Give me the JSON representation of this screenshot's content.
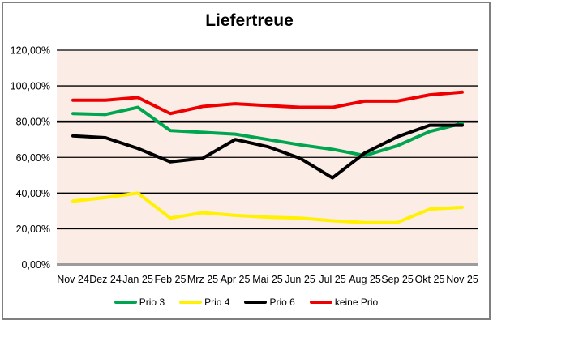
{
  "chart_data": {
    "type": "line",
    "title": "Liefertreue",
    "categories": [
      "Nov 24",
      "Dez 24",
      "Jan 25",
      "Feb 25",
      "Mrz 25",
      "Apr 25",
      "Mai 25",
      "Jun 25",
      "Jul 25",
      "Aug 25",
      "Sep 25",
      "Okt 25",
      "Nov 25"
    ],
    "series": [
      {
        "name": "Prio 3",
        "color": "#00A550",
        "values": [
          84.5,
          84,
          88,
          75,
          74,
          73,
          70,
          67,
          64.5,
          61,
          66.5,
          74.5,
          79
        ]
      },
      {
        "name": "Prio 4",
        "color": "#FFF100",
        "values": [
          35.5,
          37.5,
          40,
          26,
          29,
          27.5,
          26.5,
          26,
          24.5,
          23.5,
          23.5,
          31,
          32
        ]
      },
      {
        "name": "Prio 6",
        "color": "#000000",
        "values": [
          72,
          71,
          65,
          57.5,
          59.5,
          70,
          66,
          59.5,
          48.5,
          62.5,
          71.5,
          78,
          78
        ]
      },
      {
        "name": "keine Prio",
        "color": "#EE0000",
        "values": [
          92,
          92,
          93.5,
          84.5,
          88.5,
          90,
          89,
          88,
          88,
          91.5,
          91.5,
          95,
          96.5
        ]
      }
    ],
    "xlabel": "",
    "ylabel": "",
    "ylim": [
      0,
      120
    ],
    "y_tick_step": 20,
    "y_tick_labels": [
      "0,00%",
      "20,00%",
      "40,00%",
      "60,00%",
      "80,00%",
      "100,00%",
      "120,00%"
    ],
    "grid": true,
    "reference_line_value": 80,
    "legend_position": "bottom",
    "plot_background": "#FBECE6",
    "gridline_color": "#000000",
    "baseline_axis_color": "#9C9C9C",
    "title_color": "#000000"
  }
}
